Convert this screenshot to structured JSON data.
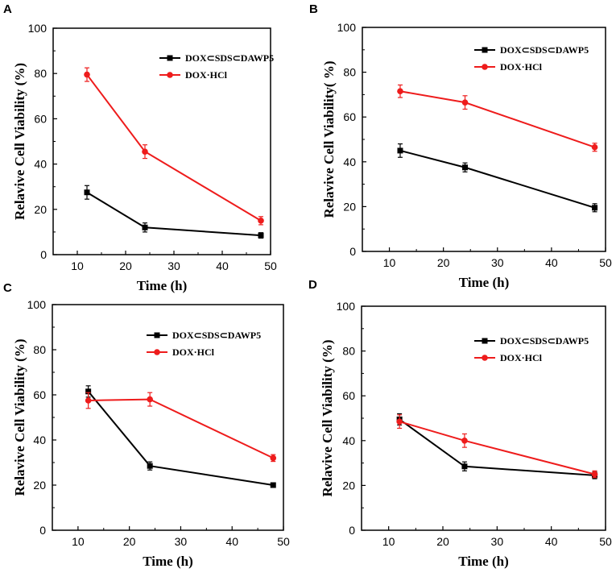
{
  "chart_data": [
    {
      "type": "line",
      "panel_label": "A",
      "xlabel": "Time (h)",
      "ylabel": "Relavive Cell Viability (%)",
      "xlim": [
        5,
        50
      ],
      "ylim": [
        0,
        100
      ],
      "xticks": [
        10,
        20,
        30,
        40,
        50
      ],
      "yticks": [
        0,
        20,
        40,
        60,
        80,
        100
      ],
      "legend_position": "top-right",
      "series": [
        {
          "name": "DOX⊂SDS⊂DAWP5",
          "color": "#000000",
          "marker": "square",
          "x": [
            12,
            24,
            48
          ],
          "y": [
            27.5,
            12,
            8.5
          ],
          "err": [
            3,
            2,
            1.2
          ]
        },
        {
          "name": "DOX·HCl",
          "color": "#ee1c1c",
          "marker": "circle",
          "x": [
            12,
            24,
            48
          ],
          "y": [
            79.5,
            45.5,
            15
          ],
          "err": [
            3,
            3,
            1.8
          ]
        }
      ]
    },
    {
      "type": "line",
      "panel_label": "B",
      "xlabel": "Time (h)",
      "ylabel": "Relavive Cell Viability(  %)",
      "xlim": [
        5,
        50
      ],
      "ylim": [
        0,
        100
      ],
      "xticks": [
        10,
        20,
        30,
        40,
        50
      ],
      "yticks": [
        0,
        20,
        40,
        60,
        80,
        100
      ],
      "legend_position": "top-right",
      "series": [
        {
          "name": "DOX⊂SDS⊂DAWP5",
          "color": "#000000",
          "marker": "square",
          "x": [
            12,
            24,
            48
          ],
          "y": [
            45,
            37.5,
            19.5
          ],
          "err": [
            3,
            2,
            1.8
          ]
        },
        {
          "name": "DOX·HCl",
          "color": "#ee1c1c",
          "marker": "circle",
          "x": [
            12,
            24,
            48
          ],
          "y": [
            71.5,
            66.5,
            46.5
          ],
          "err": [
            2.8,
            3,
            1.8
          ]
        }
      ]
    },
    {
      "type": "line",
      "panel_label": "C",
      "xlabel": "Time (h)",
      "ylabel": "Relavive Cell Viability (%)",
      "xlim": [
        5,
        50
      ],
      "ylim": [
        0,
        100
      ],
      "xticks": [
        10,
        20,
        30,
        40,
        50
      ],
      "yticks": [
        0,
        20,
        40,
        60,
        80,
        100
      ],
      "legend_position": "top-right",
      "series": [
        {
          "name": "DOX⊂SDS⊂DAWP5",
          "color": "#000000",
          "marker": "square",
          "x": [
            12,
            24,
            48
          ],
          "y": [
            61.5,
            28.5,
            20
          ],
          "err": [
            2.5,
            1.8,
            1
          ]
        },
        {
          "name": "DOX·HCl",
          "color": "#ee1c1c",
          "marker": "circle",
          "x": [
            12,
            24,
            48
          ],
          "y": [
            57.5,
            58,
            32
          ],
          "err": [
            3.5,
            3,
            1.5
          ]
        }
      ]
    },
    {
      "type": "line",
      "panel_label": "D",
      "xlabel": "Time (h)",
      "ylabel": "Relavive Cell Viability (%)",
      "xlim": [
        5,
        50
      ],
      "ylim": [
        0,
        100
      ],
      "xticks": [
        10,
        20,
        30,
        40,
        50
      ],
      "yticks": [
        0,
        20,
        40,
        60,
        80,
        100
      ],
      "legend_position": "top-right",
      "series": [
        {
          "name": "DOX⊂SDS⊂DAWP5",
          "color": "#000000",
          "marker": "square",
          "x": [
            12,
            24,
            48
          ],
          "y": [
            49.5,
            28.5,
            24.5
          ],
          "err": [
            2.5,
            2,
            1.5
          ]
        },
        {
          "name": "DOX·HCl",
          "color": "#ee1c1c",
          "marker": "circle",
          "x": [
            12,
            24,
            48
          ],
          "y": [
            48.5,
            40,
            25
          ],
          "err": [
            3,
            3,
            1.5
          ]
        }
      ]
    }
  ]
}
